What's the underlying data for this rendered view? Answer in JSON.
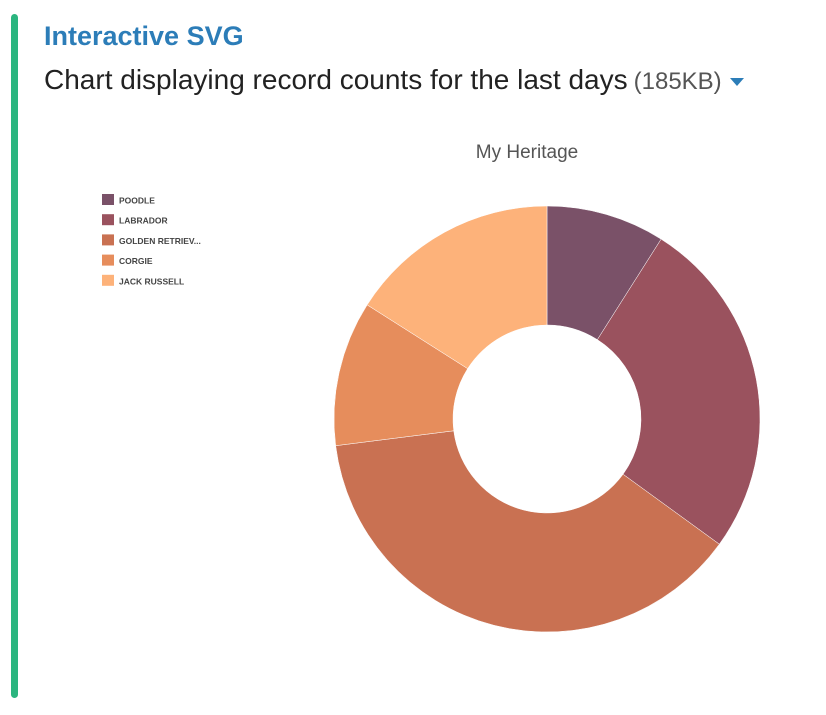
{
  "header": {
    "title": "Interactive SVG",
    "subtitle": "Chart displaying record counts for the last days",
    "size": "(185KB)"
  },
  "colors": {
    "accent_bar": "#2bb57f",
    "title": "#2c7db8"
  },
  "icons": {
    "expand": "caret-down-icon"
  },
  "chart_data": {
    "type": "pie",
    "donut": true,
    "title": "My Heritage",
    "legend_position": "left",
    "categories": [
      "POODLE",
      "LABRADOR",
      "GOLDEN RETRIEV...",
      "CORGIE",
      "JACK RUSSELL"
    ],
    "values": [
      9,
      26,
      38,
      11,
      16
    ],
    "colors": [
      "#7a5168",
      "#9a525e",
      "#c97152",
      "#e68d5c",
      "#fdb27a"
    ]
  }
}
